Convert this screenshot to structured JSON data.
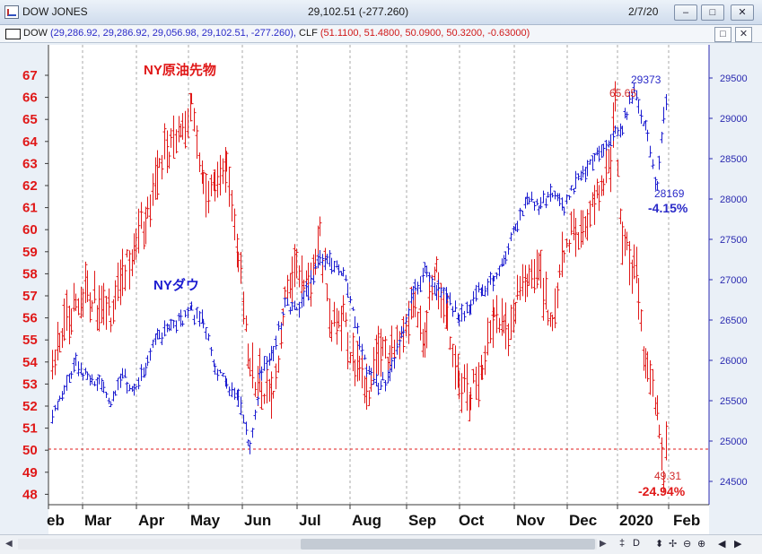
{
  "window": {
    "title": "DOW JONES",
    "quote": "29,102.51 (-277.260)",
    "date": "2/7/20",
    "buttons": [
      "minimize",
      "maximize",
      "close"
    ]
  },
  "legend": {
    "dow_label": "DOW",
    "dow_values": "(29,286.92, 29,286.92, 29,056.98, 29,102.51, -277.260),",
    "clf_label": "CLF",
    "clf_values": "(51.1100, 51.4800, 50.0900, 50.3200, -0.63000)"
  },
  "colors": {
    "oil": "#e01818",
    "dow": "#1c1cd0",
    "grid": "#a8a8a8",
    "plot_bg": "#ffffff"
  },
  "chart_data": {
    "type": "ohlc",
    "x_ticks": [
      "eb",
      "Mar",
      "Apr",
      "May",
      "Jun",
      "Jul",
      "Aug",
      "Sep",
      "Oct",
      "Nov",
      "Dec",
      "2020",
      "Feb"
    ],
    "left_axis": {
      "ticks": [
        48,
        49,
        50,
        51,
        52,
        53,
        54,
        55,
        56,
        57,
        58,
        59,
        60,
        61,
        62,
        63,
        64,
        65,
        66,
        67
      ]
    },
    "right_axis": {
      "ticks": [
        24500,
        25000,
        25500,
        26000,
        26500,
        27000,
        27500,
        28000,
        28500,
        29000,
        29500
      ]
    },
    "reference_line": {
      "axis": "left",
      "value": 50.05
    },
    "series": [
      {
        "name": "NY原油先物",
        "axis": "left",
        "points": [
          [
            "2019-02-01",
            53.8
          ],
          [
            "2019-02-08",
            55.5
          ],
          [
            "2019-02-15",
            56.5
          ],
          [
            "2019-02-22",
            57.2
          ],
          [
            "2019-03-01",
            56.5
          ],
          [
            "2019-03-08",
            56.2
          ],
          [
            "2019-03-15",
            58.0
          ],
          [
            "2019-03-22",
            59.0
          ],
          [
            "2019-03-29",
            60.1
          ],
          [
            "2019-04-05",
            62.5
          ],
          [
            "2019-04-12",
            63.8
          ],
          [
            "2019-04-19",
            64.1
          ],
          [
            "2019-04-26",
            65.5
          ],
          [
            "2019-05-03",
            62.0
          ],
          [
            "2019-05-10",
            61.7
          ],
          [
            "2019-05-17",
            62.8
          ],
          [
            "2019-05-24",
            58.8
          ],
          [
            "2019-05-31",
            53.5
          ],
          [
            "2019-06-07",
            53.0
          ],
          [
            "2019-06-14",
            52.3
          ],
          [
            "2019-06-21",
            56.9
          ],
          [
            "2019-06-28",
            58.5
          ],
          [
            "2019-07-05",
            57.5
          ],
          [
            "2019-07-12",
            60.2
          ],
          [
            "2019-07-19",
            55.8
          ],
          [
            "2019-07-26",
            56.2
          ],
          [
            "2019-08-02",
            54.0
          ],
          [
            "2019-08-09",
            52.5
          ],
          [
            "2019-08-16",
            54.9
          ],
          [
            "2019-08-23",
            54.2
          ],
          [
            "2019-08-30",
            55.1
          ],
          [
            "2019-09-06",
            56.5
          ],
          [
            "2019-09-13",
            55.3
          ],
          [
            "2019-09-20",
            58.1
          ],
          [
            "2019-09-27",
            55.9
          ],
          [
            "2019-10-04",
            52.8
          ],
          [
            "2019-10-11",
            52.5
          ],
          [
            "2019-10-18",
            53.6
          ],
          [
            "2019-10-25",
            56.2
          ],
          [
            "2019-11-01",
            55.5
          ],
          [
            "2019-11-08",
            57.1
          ],
          [
            "2019-11-15",
            57.6
          ],
          [
            "2019-11-22",
            58.1
          ],
          [
            "2019-11-29",
            55.5
          ],
          [
            "2019-12-06",
            58.9
          ],
          [
            "2019-12-13",
            60.0
          ],
          [
            "2019-12-20",
            60.4
          ],
          [
            "2019-12-27",
            61.8
          ],
          [
            "2020-01-03",
            63.0
          ],
          [
            "2020-01-06",
            65.65
          ],
          [
            "2020-01-10",
            59.0
          ],
          [
            "2020-01-17",
            58.5
          ],
          [
            "2020-01-24",
            54.2
          ],
          [
            "2020-01-31",
            51.6
          ],
          [
            "2020-02-04",
            49.31
          ],
          [
            "2020-02-07",
            50.3
          ]
        ]
      },
      {
        "name": "NYダウ",
        "axis": "right",
        "points": [
          [
            "2019-02-01",
            25300
          ],
          [
            "2019-02-08",
            25600
          ],
          [
            "2019-02-15",
            26000
          ],
          [
            "2019-02-22",
            25800
          ],
          [
            "2019-03-01",
            25700
          ],
          [
            "2019-03-08",
            25500
          ],
          [
            "2019-03-15",
            25800
          ],
          [
            "2019-03-22",
            25600
          ],
          [
            "2019-03-29",
            25900
          ],
          [
            "2019-04-05",
            26300
          ],
          [
            "2019-04-12",
            26400
          ],
          [
            "2019-04-19",
            26500
          ],
          [
            "2019-04-26",
            26600
          ],
          [
            "2019-05-03",
            26500
          ],
          [
            "2019-05-10",
            25900
          ],
          [
            "2019-05-17",
            25700
          ],
          [
            "2019-05-24",
            25550
          ],
          [
            "2019-05-31",
            24900
          ],
          [
            "2019-06-07",
            25900
          ],
          [
            "2019-06-14",
            26100
          ],
          [
            "2019-06-21",
            26700
          ],
          [
            "2019-06-28",
            26600
          ],
          [
            "2019-07-05",
            26900
          ],
          [
            "2019-07-12",
            27300
          ],
          [
            "2019-07-19",
            27200
          ],
          [
            "2019-07-26",
            27100
          ],
          [
            "2019-08-02",
            26500
          ],
          [
            "2019-08-09",
            25900
          ],
          [
            "2019-08-16",
            25700
          ],
          [
            "2019-08-23",
            25800
          ],
          [
            "2019-08-30",
            26300
          ],
          [
            "2019-09-06",
            26800
          ],
          [
            "2019-09-13",
            27100
          ],
          [
            "2019-09-20",
            26900
          ],
          [
            "2019-09-27",
            26800
          ],
          [
            "2019-10-04",
            26500
          ],
          [
            "2019-10-11",
            26700
          ],
          [
            "2019-10-18",
            26900
          ],
          [
            "2019-10-25",
            27000
          ],
          [
            "2019-11-01",
            27300
          ],
          [
            "2019-11-08",
            27700
          ],
          [
            "2019-11-15",
            28000
          ],
          [
            "2019-11-22",
            27900
          ],
          [
            "2019-11-29",
            28100
          ],
          [
            "2019-12-06",
            27900
          ],
          [
            "2019-12-13",
            28200
          ],
          [
            "2019-12-20",
            28400
          ],
          [
            "2019-12-27",
            28600
          ],
          [
            "2020-01-03",
            28700
          ],
          [
            "2020-01-10",
            28900
          ],
          [
            "2020-01-17",
            29373
          ],
          [
            "2020-01-24",
            28900
          ],
          [
            "2020-01-31",
            28169
          ],
          [
            "2020-02-04",
            29000
          ],
          [
            "2020-02-07",
            29286
          ]
        ]
      }
    ],
    "annotations": [
      {
        "text": "NY原油先物",
        "series": "NY原油先物"
      },
      {
        "text": "NYダウ",
        "series": "NYダウ"
      },
      {
        "text": "65.65",
        "series": "NY原油先物",
        "x": "2020-01-06",
        "y": 65.65
      },
      {
        "text": "29373",
        "series": "NYダウ",
        "x": "2020-01-17",
        "y": 29373
      },
      {
        "text": "28169",
        "series": "NYダウ",
        "x": "2020-01-31",
        "y": 28169
      },
      {
        "text": "-4.15%",
        "series": "NYダウ"
      },
      {
        "text": "49.31",
        "series": "NY原油先物",
        "x": "2020-02-04",
        "y": 49.31
      },
      {
        "text": "-24.94%",
        "series": "NY原油先物"
      }
    ]
  },
  "status_tools": [
    "‡",
    "D",
    "⬍",
    "✢",
    "⊖",
    "⊕",
    "◀",
    "▶"
  ]
}
